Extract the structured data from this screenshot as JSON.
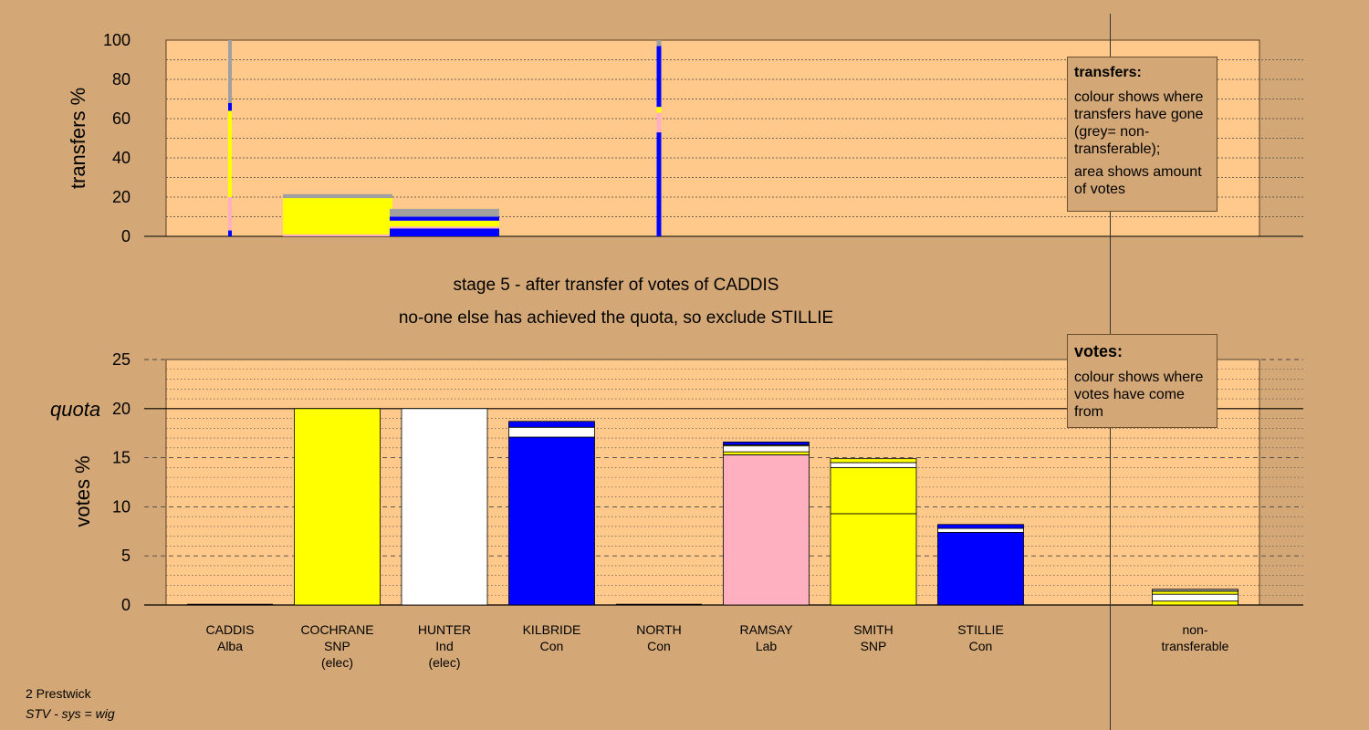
{
  "colors": {
    "background": "#d4a876",
    "plot_bg": "#ffc98c",
    "Alba": "#b0b0b0",
    "SNP": "#ffff00",
    "Ind": "#ffffff",
    "Con": "#0000ff",
    "Lab": "#ffb0c0",
    "nontransferable": "#a0a0a0",
    "gridline": "#444444"
  },
  "stage_title": "stage 5 - after transfer of votes of CADDIS",
  "stage_subtitle": "no-one else has achieved the quota, so exclude STILLIE",
  "footer": {
    "location": "2 Prestwick",
    "system": "STV - sys = wig"
  },
  "transfers_legend": {
    "title": "transfers:",
    "line1": "colour shows where transfers have gone (grey= non-transferable);",
    "line2": "area shows amount of votes"
  },
  "votes_legend": {
    "title": "votes:",
    "line1": "colour shows where votes have come from"
  },
  "chart_data": [
    {
      "type": "bar",
      "title": "",
      "ylabel": "transfers %",
      "ylim": [
        0,
        100
      ],
      "yticks": [
        0,
        20,
        40,
        60,
        80,
        100
      ],
      "grid": true,
      "bars": [
        {
          "candidate": "CADDIS",
          "width_share": 0.03,
          "segments": [
            {
              "party": "Con",
              "value": 3
            },
            {
              "party": "Lab",
              "value": 17
            },
            {
              "party": "SNP",
              "value": 44
            },
            {
              "party": "Con",
              "value": 4
            },
            {
              "party": "nontransferable",
              "value": 32
            }
          ]
        },
        {
          "candidate": "COCHRANE",
          "width_share": 1.0,
          "segments": [
            {
              "party": "Lab",
              "value": 1
            },
            {
              "party": "SNP",
              "value": 18.5
            },
            {
              "party": "nontransferable",
              "value": 2
            }
          ]
        },
        {
          "candidate": "HUNTER",
          "width_share": 1.0,
          "segments": [
            {
              "party": "Con",
              "value": 4
            },
            {
              "party": "Lab",
              "value": 1
            },
            {
              "party": "SNP",
              "value": 3
            },
            {
              "party": "Con",
              "value": 2
            },
            {
              "party": "nontransferable",
              "value": 4
            }
          ]
        },
        {
          "candidate": "NORTH",
          "width_share": 0.05,
          "segments": [
            {
              "party": "Con",
              "value": 53
            },
            {
              "party": "Lab",
              "value": 10
            },
            {
              "party": "SNP",
              "value": 3
            },
            {
              "party": "Con",
              "value": 31
            },
            {
              "party": "nontransferable",
              "value": 3
            }
          ]
        }
      ]
    },
    {
      "type": "bar",
      "title": "",
      "ylabel": "votes %",
      "ylim": [
        0,
        25
      ],
      "yticks": [
        0,
        5,
        10,
        15,
        20,
        25
      ],
      "quota": 20,
      "quota_label": "quota",
      "grid": true,
      "categories": [
        {
          "name": "CADDIS",
          "party": "Alba",
          "note": ""
        },
        {
          "name": "COCHRANE",
          "party": "SNP",
          "note": "(elec)"
        },
        {
          "name": "HUNTER",
          "party": "Ind",
          "note": "(elec)"
        },
        {
          "name": "KILBRIDE",
          "party": "Con",
          "note": ""
        },
        {
          "name": "NORTH",
          "party": "Con",
          "note": ""
        },
        {
          "name": "RAMSAY",
          "party": "Lab",
          "note": ""
        },
        {
          "name": "SMITH",
          "party": "SNP",
          "note": ""
        },
        {
          "name": "STILLIE",
          "party": "Con",
          "note": ""
        },
        {
          "name": "",
          "party": "",
          "note": ""
        },
        {
          "name": "non-",
          "party": "transferable",
          "note": ""
        }
      ],
      "stacks": [
        [],
        [
          {
            "color": "SNP",
            "value": 20
          }
        ],
        [
          {
            "color": "Ind",
            "value": 20
          }
        ],
        [
          {
            "color": "Con",
            "value": 17.1
          },
          {
            "color": "Ind",
            "value": 1
          },
          {
            "color": "Con",
            "value": 0.6
          }
        ],
        [],
        [
          {
            "color": "Lab",
            "value": 15.3
          },
          {
            "color": "SNP",
            "value": 0.3
          },
          {
            "color": "Ind",
            "value": 0.6
          },
          {
            "color": "SNP",
            "value": 0.1
          },
          {
            "color": "Con",
            "value": 0.3
          }
        ],
        [
          {
            "color": "SNP",
            "value": 9.3
          },
          {
            "color": "SNP",
            "value": 4.7
          },
          {
            "color": "Ind",
            "value": 0.5
          },
          {
            "color": "SNP",
            "value": 0.4
          }
        ],
        [
          {
            "color": "Con",
            "value": 7.4
          },
          {
            "color": "Ind",
            "value": 0.4
          },
          {
            "color": "Con",
            "value": 0.4
          }
        ],
        [],
        [
          {
            "color": "SNP",
            "value": 0.4
          },
          {
            "color": "Ind",
            "value": 0.7
          },
          {
            "color": "SNP",
            "value": 0.3
          },
          {
            "color": "nontransferable",
            "value": 0.2
          }
        ]
      ]
    }
  ]
}
